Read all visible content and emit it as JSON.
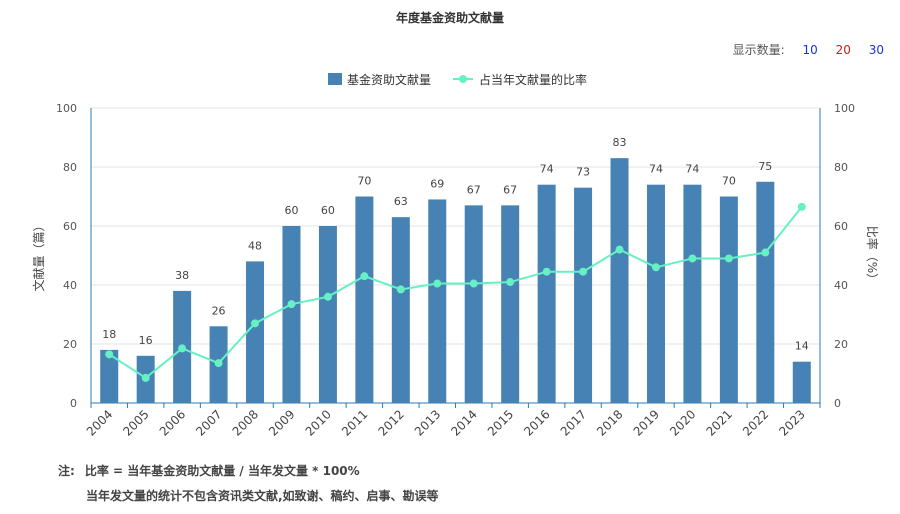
{
  "chart_data": {
    "type": "bar",
    "title": "年度基金资助文献量",
    "categories": [
      "2004",
      "2005",
      "2006",
      "2007",
      "2008",
      "2009",
      "2010",
      "2011",
      "2012",
      "2013",
      "2014",
      "2015",
      "2016",
      "2017",
      "2018",
      "2019",
      "2020",
      "2021",
      "2022",
      "2023"
    ],
    "series": [
      {
        "name": "基金资助文献量",
        "type": "bar",
        "axis": "left",
        "color": "#4682b4",
        "values": [
          18,
          16,
          38,
          26,
          48,
          60,
          60,
          70,
          63,
          69,
          67,
          67,
          74,
          73,
          83,
          74,
          74,
          70,
          75,
          14
        ]
      },
      {
        "name": "占当年文献量的比率",
        "type": "line",
        "axis": "right",
        "color": "#66f0c4",
        "values": [
          16.5,
          8.5,
          18.5,
          13.5,
          27,
          33.5,
          36,
          43,
          38.5,
          40.5,
          40.5,
          41,
          44.5,
          44.5,
          52,
          46,
          49,
          49,
          51,
          66.5
        ]
      }
    ],
    "ylabel": "文献量（篇）",
    "y2label": "比率（%）",
    "ylim": [
      0,
      100
    ],
    "y2lim": [
      0,
      100
    ],
    "yticks": [
      "0",
      "20",
      "40",
      "60",
      "80",
      "100"
    ],
    "y2ticks": [
      "0",
      "20",
      "40",
      "60",
      "80",
      "100"
    ],
    "grid": true,
    "legend": "top-center"
  },
  "controls": {
    "display_count_label": "显示数量:",
    "options": [
      "10",
      "20",
      "30"
    ]
  },
  "notes": {
    "label": "注:",
    "line1": "比率 = 当年基金资助文献量 / 当年发文量 * 100%",
    "line2": "当年发文量的统计不包含资讯类文献,如致谢、稿约、启事、勘误等"
  }
}
